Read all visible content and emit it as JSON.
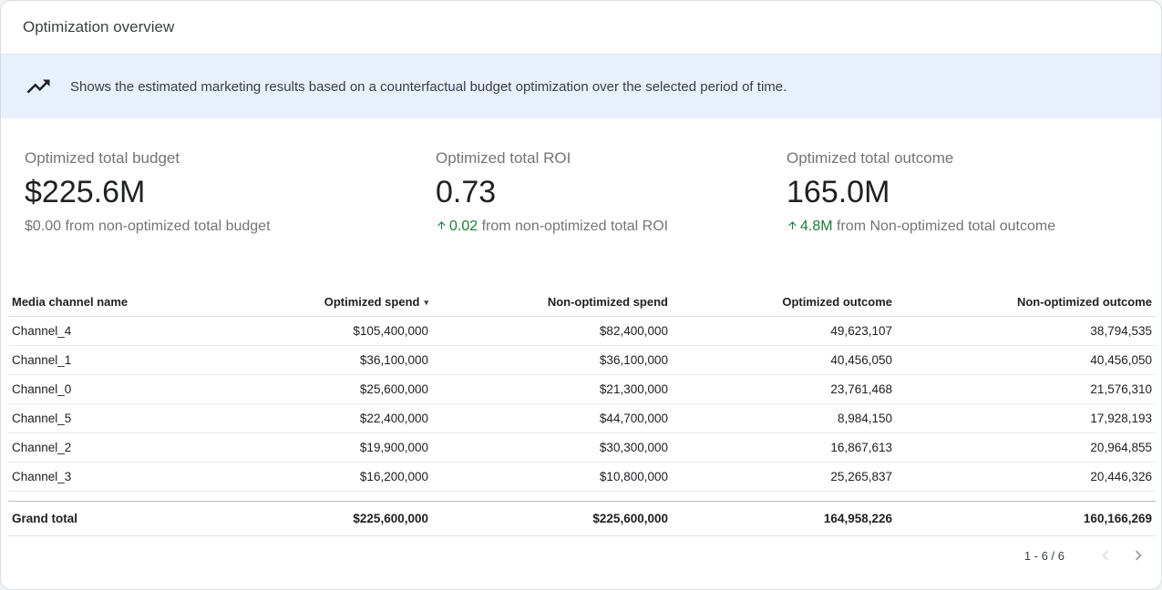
{
  "title": "Optimization overview",
  "banner": {
    "icon": "trending-up-icon",
    "text": "Shows the estimated marketing results based on a counterfactual budget optimization over the selected period of time."
  },
  "kpis": {
    "budget": {
      "label": "Optimized total budget",
      "value": "$225.6M",
      "delta": "$0.00",
      "suffix": " from non-optimized total budget"
    },
    "roi": {
      "label": "Optimized total ROI",
      "value": "0.73",
      "delta": "0.02",
      "suffix": " from non-optimized total ROI"
    },
    "outcome": {
      "label": "Optimized total outcome",
      "value": "165.0M",
      "delta": "4.8M",
      "suffix": " from Non-optimized total outcome"
    }
  },
  "table": {
    "columns": [
      "Media channel name",
      "Optimized spend",
      "Non-optimized spend",
      "Optimized outcome",
      "Non-optimized outcome"
    ],
    "sort": {
      "column": "Optimized spend",
      "direction": "desc",
      "indicator": "▾"
    },
    "rows": [
      [
        "Channel_4",
        "$105,400,000",
        "$82,400,000",
        "49,623,107",
        "38,794,535"
      ],
      [
        "Channel_1",
        "$36,100,000",
        "$36,100,000",
        "40,456,050",
        "40,456,050"
      ],
      [
        "Channel_0",
        "$25,600,000",
        "$21,300,000",
        "23,761,468",
        "21,576,310"
      ],
      [
        "Channel_5",
        "$22,400,000",
        "$44,700,000",
        "8,984,150",
        "17,928,193"
      ],
      [
        "Channel_2",
        "$19,900,000",
        "$30,300,000",
        "16,867,613",
        "20,964,855"
      ],
      [
        "Channel_3",
        "$16,200,000",
        "$10,800,000",
        "25,265,837",
        "20,446,326"
      ]
    ],
    "grand_total": [
      "Grand total",
      "$225,600,000",
      "$225,600,000",
      "164,958,226",
      "160,166,269"
    ]
  },
  "pagination": {
    "range": "1 - 6 / 6"
  },
  "colors": {
    "positive": "#188038",
    "banner_bg": "#e8f0fe"
  }
}
